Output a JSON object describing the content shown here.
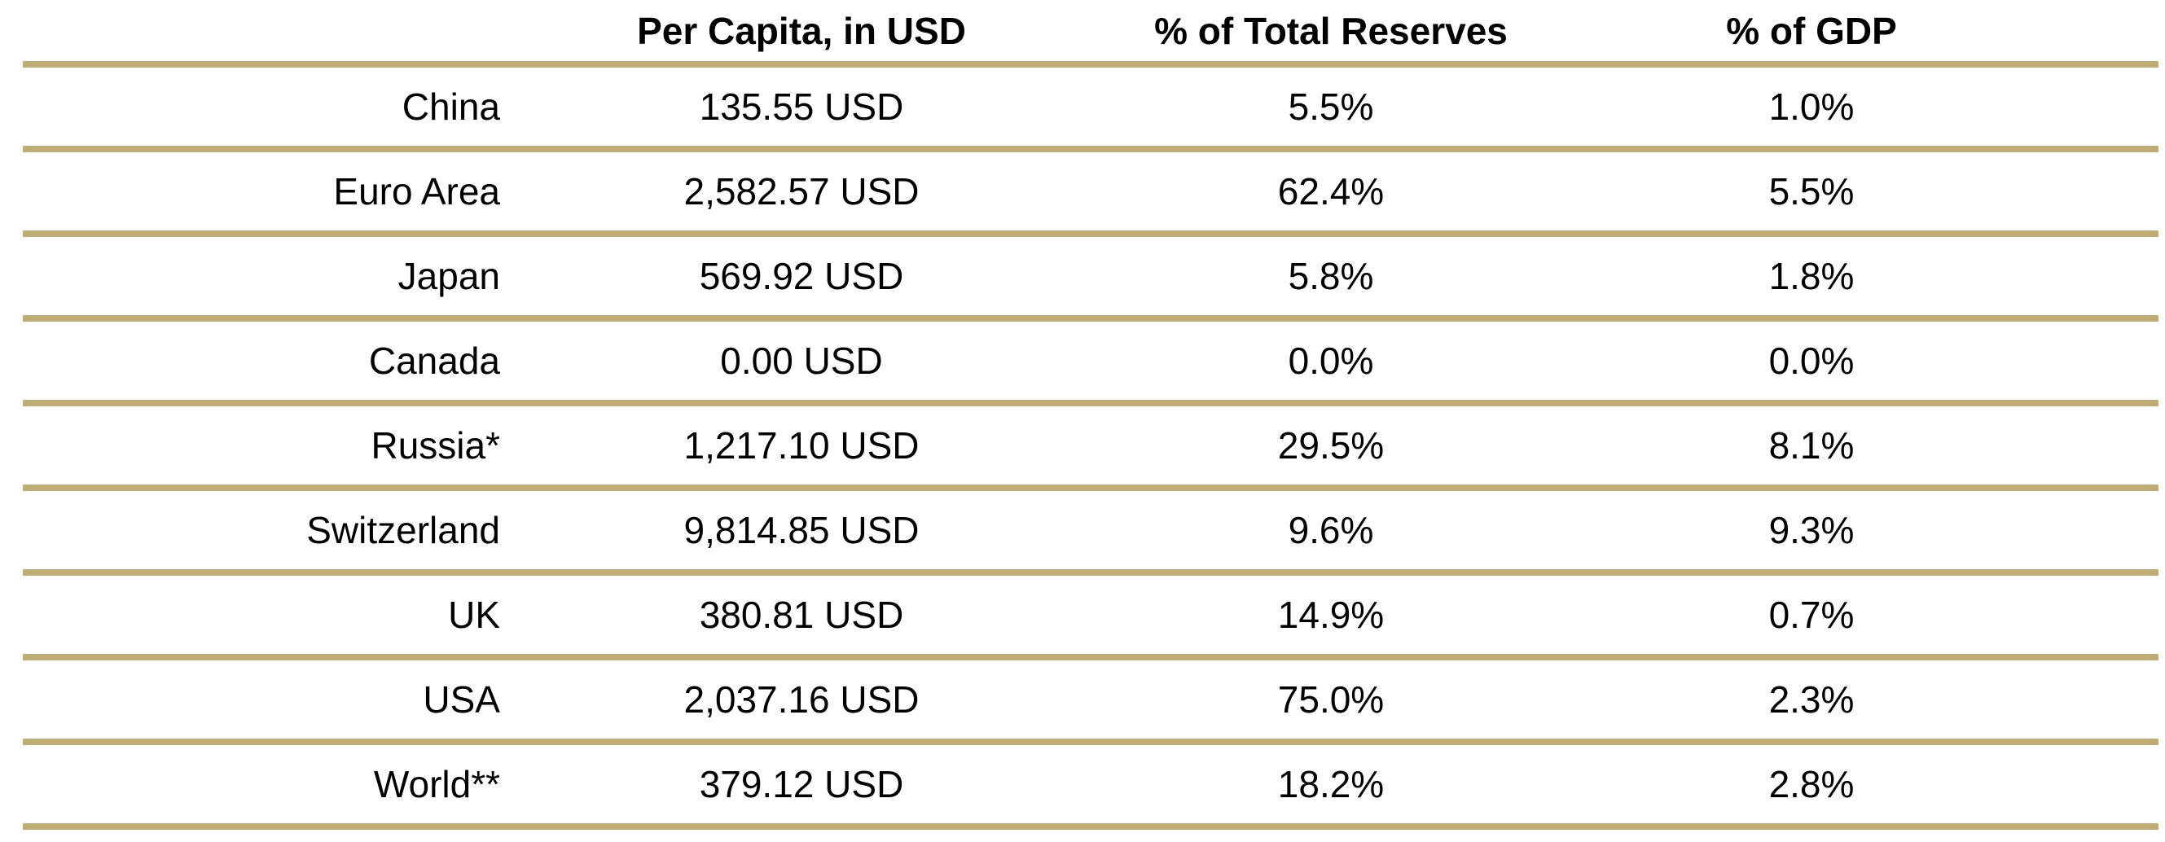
{
  "header": {
    "country": "",
    "per_capita": "Per Capita, in USD",
    "pct_reserves": "% of Total Reserves",
    "pct_gdp": "% of GDP"
  },
  "rows": [
    {
      "country": "China",
      "per_capita": "135.55 USD",
      "pct_reserves": "5.5%",
      "pct_gdp": "1.0%"
    },
    {
      "country": "Euro Area",
      "per_capita": "2,582.57 USD",
      "pct_reserves": "62.4%",
      "pct_gdp": "5.5%"
    },
    {
      "country": "Japan",
      "per_capita": "569.92 USD",
      "pct_reserves": "5.8%",
      "pct_gdp": "1.8%"
    },
    {
      "country": "Canada",
      "per_capita": "0.00 USD",
      "pct_reserves": "0.0%",
      "pct_gdp": "0.0%"
    },
    {
      "country": "Russia*",
      "per_capita": "1,217.10 USD",
      "pct_reserves": "29.5%",
      "pct_gdp": "8.1%"
    },
    {
      "country": "Switzerland",
      "per_capita": "9,814.85 USD",
      "pct_reserves": "9.6%",
      "pct_gdp": "9.3%"
    },
    {
      "country": "UK",
      "per_capita": "380.81 USD",
      "pct_reserves": "14.9%",
      "pct_gdp": "0.7%"
    },
    {
      "country": "USA",
      "per_capita": "2,037.16 USD",
      "pct_reserves": "75.0%",
      "pct_gdp": "2.3%"
    },
    {
      "country": "World**",
      "per_capita": "379.12 USD",
      "pct_reserves": "18.2%",
      "pct_gdp": "2.8%"
    }
  ],
  "colors": {
    "rule": "#bfab74",
    "text": "#000000",
    "background": "#ffffff"
  }
}
